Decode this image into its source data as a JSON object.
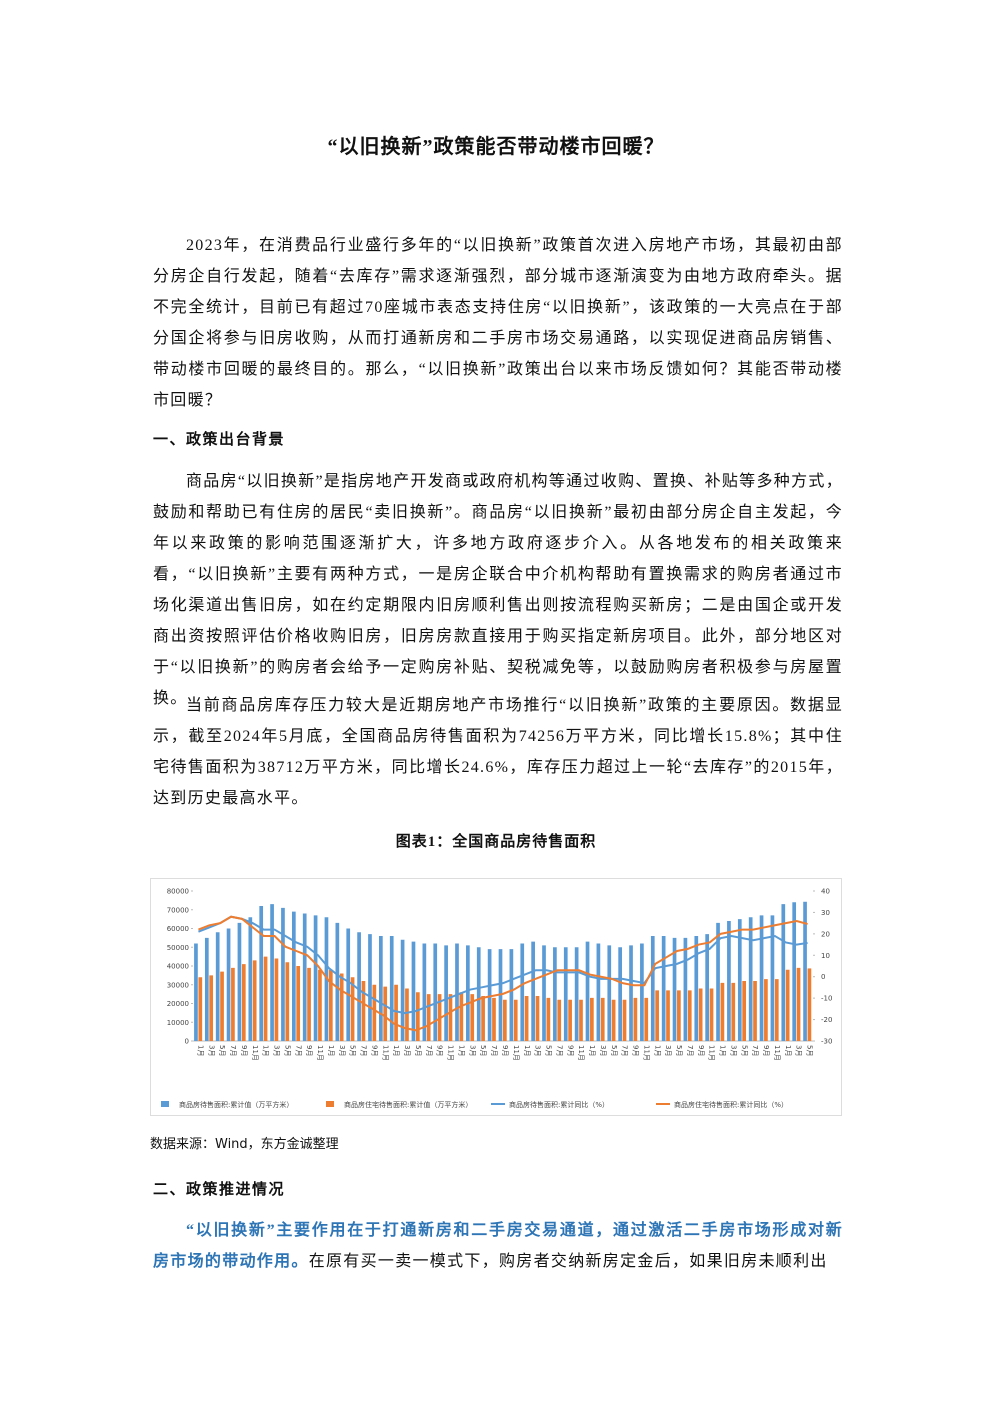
{
  "document": {
    "title": "“以旧换新”政策能否带动楼市回暖？",
    "intro": "2023年，在消费品行业盛行多年的“以旧换新”政策首次进入房地产市场，其最初由部分房企自行发起，随着“去库存”需求逐渐强烈，部分城市逐渐演变为由地方政府牵头。据不完全统计，目前已有超过70座城市表态支持住房“以旧换新”，该政策的一大亮点在于部分国企将参与旧房收购，从而打通新房和二手房市场交易通路，以实现促进商品房销售、带动楼市回暖的最终目的。那么，“以旧换新”政策出台以来市场反馈如何？其能否带动楼市回暖？",
    "section1": {
      "heading": "一、政策出台背景",
      "paragraphs": [
        "商品房“以旧换新”是指房地产开发商或政府机构等通过收购、置换、补贴等多种方式，鼓励和帮助已有住房的居民“卖旧换新”。商品房“以旧换新”最初由部分房企自主发起，今年以来政策的影响范围逐渐扩大，许多地方政府逐步介入。从各地发布的相关政策来看，“以旧换新”主要有两种方式，一是房企联合中介机构帮助有置换需求的购房者通过市场化渠道出售旧房，如在约定期限内旧房顺利售出则按流程购买新房；二是由国企或开发商出资按照评估价格收购旧房，旧房房款直接用于购买指定新房项目。此外，部分地区对于“以旧换新”的购房者会给予一定购房补贴、契税减免等，以鼓励购房者积极参与房屋置换。",
        "当前商品房库存压力较大是近期房地产市场推行“以旧换新”政策的主要原因。数据显示，截至2024年5月底，全国商品房待售面积为74256万平方米，同比增长15.8%；其中住宅待售面积为38712万平方米，同比增长24.6%，库存压力超过上一轮“去库存”的2015年，达到历史最高水平。"
      ],
      "figure_caption": "图表1：全国商品房待售面积",
      "source": "数据来源：Wind，东方金诚整理"
    },
    "section2": {
      "heading": "二、政策推进情况",
      "highlight": "“以旧换新”主要作用在于打通新房和二手房交易通道，通过激活二手房市场形成对新房市场的带动作用。",
      "text": "在原有买一卖一模式下，购房者交纳新房定金后，如果旧房未顺利出"
    }
  },
  "chart_data": {
    "type": "bar-line",
    "legend": "bottom",
    "categories": [
      "1月",
      "3月",
      "5月",
      "7月",
      "9月",
      "11月",
      "1月",
      "3月",
      "5月",
      "7月",
      "9月",
      "11月",
      "1月",
      "3月",
      "5月",
      "7月",
      "9月",
      "11月",
      "1月",
      "3月",
      "5月",
      "7月",
      "9月",
      "11月",
      "1月",
      "3月",
      "5月",
      "7月",
      "9月",
      "11月",
      "1月",
      "3月",
      "5月",
      "7月",
      "9月",
      "11月",
      "1月",
      "3月",
      "5月",
      "7月",
      "9月",
      "11月",
      "1月",
      "3月",
      "5月",
      "7月",
      "9月",
      "11月",
      "1月",
      "3月",
      "5月",
      "7月",
      "9月",
      "11月",
      "1月",
      "3月",
      "5月"
    ],
    "ylim": [
      0,
      80000
    ],
    "yticks": [
      0,
      10000,
      20000,
      30000,
      40000,
      50000,
      60000,
      70000,
      80000
    ],
    "y2lim": [
      -30,
      40
    ],
    "y2ticks": [
      -30,
      -20,
      -10,
      0,
      10,
      20,
      30,
      40
    ],
    "series": [
      {
        "name": "商品房待售面积:累计值（万平方米）",
        "color": "#5b9bd5",
        "type": "bar",
        "values": [
          52000,
          55000,
          58000,
          60000,
          63000,
          66000,
          72000,
          73000,
          71000,
          69000,
          68000,
          67000,
          66000,
          63000,
          60000,
          58000,
          57000,
          56000,
          56000,
          54000,
          53000,
          52000,
          52000,
          51000,
          52000,
          51000,
          50000,
          49000,
          49000,
          49000,
          52000,
          53000,
          51000,
          50000,
          50000,
          50000,
          53000,
          52000,
          51000,
          50000,
          51000,
          52000,
          56000,
          56000,
          55000,
          55000,
          56000,
          57000,
          63000,
          64000,
          65000,
          66000,
          67000,
          67000,
          73000,
          74000,
          74256
        ]
      },
      {
        "name": "商品房住宅待售面积:累计值（万平方米）",
        "color": "#ed7d31",
        "type": "bar",
        "values": [
          34000,
          35000,
          37000,
          39000,
          41000,
          43000,
          45000,
          44000,
          42000,
          40000,
          39000,
          38000,
          38000,
          36000,
          34000,
          32000,
          30000,
          29000,
          30000,
          28000,
          26000,
          25000,
          25000,
          25000,
          26000,
          25000,
          24000,
          23000,
          22000,
          22000,
          24000,
          24000,
          23000,
          22000,
          22000,
          22000,
          23000,
          23000,
          22000,
          22000,
          23000,
          23000,
          27000,
          27000,
          27000,
          27000,
          28000,
          28000,
          31000,
          31000,
          32000,
          32000,
          33000,
          33000,
          38000,
          39000,
          38712
        ]
      },
      {
        "name": "商品房待售面积:累计同比（%）",
        "color": "#5b9bd5",
        "type": "line",
        "axis": "y2",
        "values": [
          21,
          23,
          25,
          28,
          27,
          25,
          22,
          22,
          19,
          16,
          14,
          10,
          4,
          0,
          -3,
          -7,
          -10,
          -13,
          -16,
          -17,
          -16,
          -14,
          -12,
          -10,
          -8,
          -6,
          -5,
          -4,
          -3,
          -1,
          1,
          3,
          3,
          2,
          2,
          2,
          0,
          -1,
          -1,
          -1,
          -2,
          -3,
          4,
          5,
          6,
          8,
          11,
          13,
          18,
          19,
          18,
          17,
          18,
          19,
          16,
          15,
          15.8
        ]
      },
      {
        "name": "商品房住宅待售面积:累计同比（%）",
        "color": "#ed7d31",
        "type": "line",
        "axis": "y2",
        "values": [
          22,
          24,
          25,
          28,
          27,
          23,
          19,
          19,
          14,
          12,
          10,
          5,
          -2,
          -6,
          -9,
          -12,
          -15,
          -18,
          -22,
          -24,
          -25,
          -23,
          -20,
          -17,
          -14,
          -12,
          -10,
          -9,
          -8,
          -6,
          -3,
          -1,
          1,
          3,
          3,
          3,
          1,
          0,
          -1,
          -3,
          -4,
          -4,
          6,
          9,
          12,
          13,
          15,
          16,
          20,
          21,
          22,
          22,
          23,
          24,
          25,
          26,
          24.6
        ]
      }
    ]
  }
}
